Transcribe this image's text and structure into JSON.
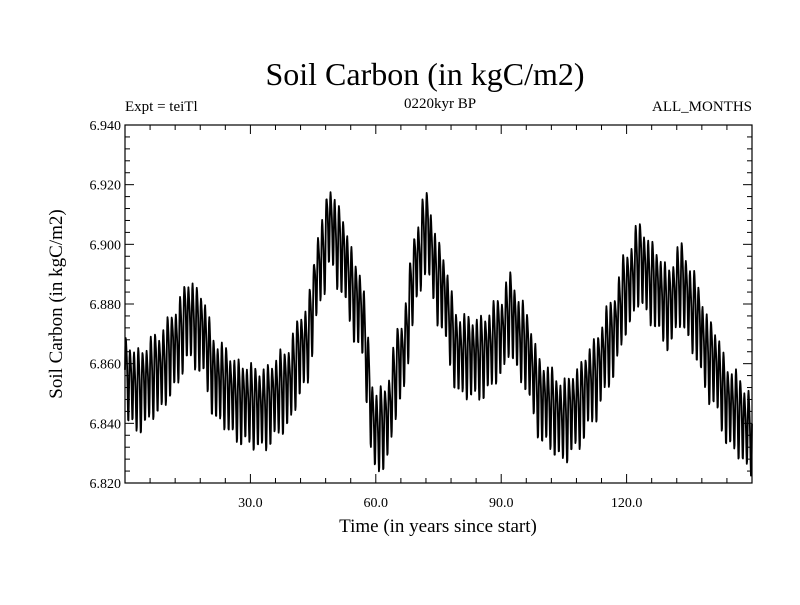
{
  "chart_data": {
    "type": "line",
    "title": "Soil Carbon (in kgC/m2)",
    "subtitle": "0220kyr BP",
    "left_note": "Expt = teiTl",
    "right_note": "ALL_MONTHS",
    "xlabel": "Time (in years since start)",
    "ylabel": "Soil Carbon (in kgC/m2)",
    "xlim": [
      0,
      150
    ],
    "ylim": [
      6.82,
      6.94
    ],
    "x_ticks": [
      30,
      60,
      90,
      120
    ],
    "x_tick_labels": [
      "30.0",
      "60.0",
      "90.0",
      "120.0"
    ],
    "y_ticks": [
      6.82,
      6.84,
      6.86,
      6.88,
      6.9,
      6.92,
      6.94
    ],
    "y_tick_labels": [
      "6.820",
      "6.840",
      "6.860",
      "6.880",
      "6.900",
      "6.920",
      "6.940"
    ],
    "series": [
      {
        "name": "Soil Carbon",
        "color": "#000000",
        "seasonal_cycle_amplitude": 0.012,
        "envelope_x": [
          0,
          3,
          8,
          12,
          15,
          18,
          22,
          28,
          33,
          38,
          43,
          47,
          49,
          51,
          56,
          60,
          62,
          66,
          70,
          72,
          75,
          80,
          85,
          90,
          92,
          95,
          100,
          105,
          108,
          112,
          116,
          120,
          123,
          126,
          130,
          133,
          136,
          140,
          145,
          150
        ],
        "envelope_y": [
          6.856,
          6.852,
          6.858,
          6.866,
          6.876,
          6.872,
          6.855,
          6.848,
          6.846,
          6.852,
          6.866,
          6.895,
          6.908,
          6.9,
          6.88,
          6.838,
          6.84,
          6.862,
          6.895,
          6.906,
          6.888,
          6.864,
          6.863,
          6.87,
          6.878,
          6.868,
          6.848,
          6.842,
          6.846,
          6.855,
          6.868,
          6.885,
          6.895,
          6.888,
          6.88,
          6.888,
          6.878,
          6.862,
          6.846,
          6.838
        ]
      }
    ]
  }
}
